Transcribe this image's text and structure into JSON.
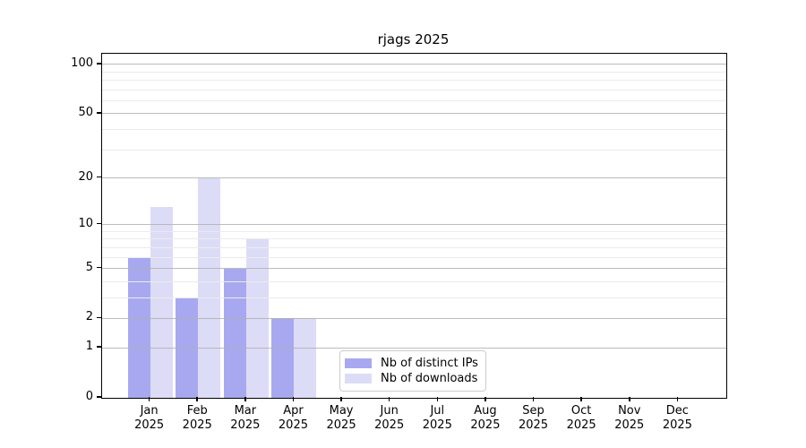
{
  "chart_data": {
    "type": "bar",
    "title": "rjags 2025",
    "categories": [
      "Jan",
      "Feb",
      "Mar",
      "Apr",
      "May",
      "Jun",
      "Jul",
      "Aug",
      "Sep",
      "Oct",
      "Nov",
      "Dec"
    ],
    "xtick_year_line": "2025",
    "series": [
      {
        "name": "Nb of distinct IPs",
        "color": "#a8a8f0",
        "values": [
          6,
          3,
          5,
          2,
          0,
          0,
          0,
          0,
          0,
          0,
          0,
          0
        ]
      },
      {
        "name": "Nb of downloads",
        "color": "#dcdcf7",
        "values": [
          13,
          20,
          8,
          2,
          0,
          0,
          0,
          0,
          0,
          0,
          0,
          0
        ]
      }
    ],
    "xlabel": "",
    "ylabel": "",
    "yscale": "log1p",
    "ylim": [
      0,
      116
    ],
    "y_major_ticks": [
      0,
      1,
      2,
      5,
      10,
      20,
      50,
      100
    ],
    "y_minor_gridlines": [
      3,
      4,
      6,
      7,
      8,
      9,
      30,
      40,
      60,
      70,
      80,
      90
    ],
    "grid": "horizontal",
    "legend_position": "inside-lower-center",
    "colors": {
      "grid_major": "#b0b0b0",
      "grid_minor": "#ebebeb",
      "spine": "#000000",
      "background": "#ffffff"
    }
  }
}
